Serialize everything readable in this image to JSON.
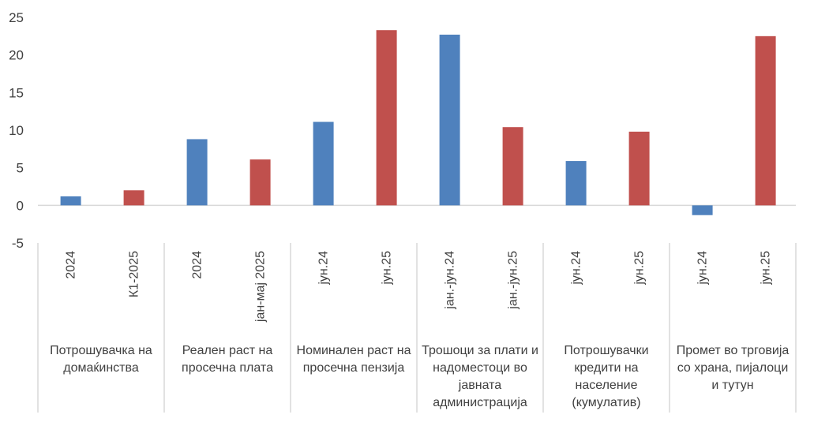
{
  "chart_data": {
    "type": "bar",
    "title": "",
    "xlabel": "",
    "ylabel": "",
    "ylim": [
      -5,
      25
    ],
    "yticks": [
      "25",
      "20",
      "15",
      "10",
      "5",
      "0",
      "-5"
    ],
    "grid": false,
    "legend": "none",
    "groups": [
      {
        "label_lines": [
          "Потрошувачка на",
          "домаќинства"
        ],
        "categories": [
          "2024",
          "К1-2025"
        ],
        "values": [
          1.2,
          2.0
        ]
      },
      {
        "label_lines": [
          "Реален раст на",
          "просечна плата"
        ],
        "categories": [
          "2024",
          "јан-мај 2025"
        ],
        "values": [
          8.8,
          6.1
        ]
      },
      {
        "label_lines": [
          "Номинален раст на",
          "просечна пензија"
        ],
        "categories": [
          "јун.24",
          "јун.25"
        ],
        "values": [
          11.1,
          23.3
        ]
      },
      {
        "label_lines": [
          "Трошоци за плати и",
          "надоместоци во",
          "јавната",
          "администрација"
        ],
        "categories": [
          "јан.-јун.24",
          "јан.-јун.25"
        ],
        "values": [
          22.7,
          10.4
        ]
      },
      {
        "label_lines": [
          "Потрошувачки",
          "кредити на",
          "население",
          "(кумулатив)"
        ],
        "categories": [
          "јун.24",
          "јун.25"
        ],
        "values": [
          5.9,
          9.8
        ]
      },
      {
        "label_lines": [
          "Промет во трговија",
          "со храна, пијалоци",
          "и тутун"
        ],
        "categories": [
          "јун.24",
          "јун.25"
        ],
        "values": [
          -1.3,
          22.5
        ]
      }
    ],
    "colors": {
      "first": "#4F81BD",
      "second": "#C0504D",
      "axis": "#D9D9D9",
      "text": "#404040"
    }
  }
}
